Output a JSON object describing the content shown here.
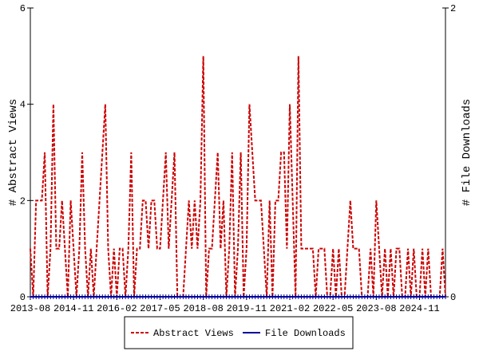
{
  "chart_data": {
    "type": "line",
    "x": [
      "2013-08",
      "2013-09",
      "2013-10",
      "2013-11",
      "2013-12",
      "2014-01",
      "2014-02",
      "2014-03",
      "2014-04",
      "2014-05",
      "2014-06",
      "2014-07",
      "2014-08",
      "2014-09",
      "2014-10",
      "2014-11",
      "2014-12",
      "2015-01",
      "2015-02",
      "2015-03",
      "2015-04",
      "2015-05",
      "2015-06",
      "2015-07",
      "2015-08",
      "2015-09",
      "2015-10",
      "2015-11",
      "2015-12",
      "2016-01",
      "2016-02",
      "2016-03",
      "2016-04",
      "2016-05",
      "2016-06",
      "2016-07",
      "2016-08",
      "2016-09",
      "2016-10",
      "2016-11",
      "2016-12",
      "2017-01",
      "2017-02",
      "2017-03",
      "2017-04",
      "2017-05",
      "2017-06",
      "2017-07",
      "2017-08",
      "2017-09",
      "2017-10",
      "2017-11",
      "2017-12",
      "2018-01",
      "2018-02",
      "2018-03",
      "2018-04",
      "2018-05",
      "2018-06",
      "2018-07",
      "2018-08",
      "2018-09",
      "2018-10",
      "2018-11",
      "2018-12",
      "2019-01",
      "2019-02",
      "2019-03",
      "2019-04",
      "2019-05",
      "2019-06",
      "2019-07",
      "2019-08",
      "2019-09",
      "2019-10",
      "2019-11",
      "2019-12",
      "2020-01",
      "2020-02",
      "2020-03",
      "2020-04",
      "2020-05",
      "2020-06",
      "2020-07",
      "2020-08",
      "2020-09",
      "2020-10",
      "2020-11",
      "2020-12",
      "2021-01",
      "2021-02",
      "2021-03",
      "2021-04",
      "2021-05",
      "2021-06",
      "2021-07",
      "2021-08",
      "2021-09",
      "2021-10",
      "2021-11",
      "2021-12",
      "2022-01",
      "2022-02",
      "2022-03",
      "2022-04",
      "2022-05",
      "2022-06",
      "2022-07",
      "2022-08",
      "2022-09",
      "2022-10",
      "2022-11",
      "2022-12",
      "2023-01",
      "2023-02",
      "2023-03",
      "2023-04",
      "2023-05",
      "2023-06",
      "2023-07",
      "2023-08",
      "2023-09",
      "2023-10",
      "2023-11",
      "2023-12",
      "2024-01",
      "2024-02",
      "2024-03",
      "2024-04",
      "2024-05",
      "2024-06",
      "2024-07",
      "2024-08",
      "2024-09",
      "2024-10",
      "2024-11",
      "2024-12",
      "2025-01",
      "2025-02",
      "2025-03",
      "2025-04",
      "2025-05",
      "2025-06",
      "2025-07",
      "2025-08"
    ],
    "xlim": [
      "2013-08",
      "2025-08"
    ],
    "xticks": [
      "2013-08",
      "2014-11",
      "2016-02",
      "2017-05",
      "2018-08",
      "2019-11",
      "2021-02",
      "2022-05",
      "2023-08",
      "2024-11"
    ],
    "ylim": [
      0,
      6
    ],
    "yticks": [
      0,
      2,
      4,
      6
    ],
    "y2lim": [
      0,
      2
    ],
    "y2ticks": [
      0,
      2
    ],
    "ylabel": "# Abstract Views",
    "y2label": "# File Downloads",
    "series": [
      {
        "name": "Abstract Views",
        "color": "#cc0000",
        "dashed": true,
        "values": [
          1,
          0,
          2,
          2,
          2,
          3,
          0,
          1,
          4,
          1,
          1,
          2,
          1,
          0,
          2,
          1,
          0,
          1,
          3,
          1,
          0,
          1,
          0,
          1,
          2,
          3,
          4,
          1,
          0,
          1,
          0,
          1,
          1,
          0,
          1,
          3,
          0,
          1,
          1,
          2,
          2,
          1,
          2,
          2,
          1,
          1,
          2,
          3,
          1,
          2,
          3,
          0,
          0,
          0,
          1,
          2,
          1,
          2,
          1,
          2,
          5,
          0,
          1,
          1,
          2,
          3,
          1,
          2,
          0,
          1,
          3,
          0,
          1,
          3,
          0,
          1,
          4,
          3,
          2,
          2,
          2,
          1,
          0,
          2,
          0,
          2,
          2,
          3,
          3,
          1,
          4,
          2,
          0,
          5,
          1,
          1,
          1,
          1,
          1,
          0,
          1,
          1,
          1,
          0,
          0,
          1,
          0,
          1,
          0,
          0,
          1,
          2,
          1,
          1,
          1,
          0,
          0,
          0,
          1,
          0,
          2,
          1,
          0,
          1,
          0,
          1,
          0,
          1,
          1,
          0,
          0,
          1,
          0,
          1,
          0,
          0,
          1,
          0,
          1,
          0,
          0,
          0,
          0,
          1,
          0
        ]
      },
      {
        "name": "File Downloads",
        "color": "#000099",
        "axis": "y2",
        "dashed": false,
        "values": [
          0,
          0,
          0,
          0,
          0,
          0,
          0,
          0,
          0,
          0,
          0,
          0,
          0,
          0,
          0,
          0,
          0,
          0,
          0,
          0,
          0,
          0,
          0,
          0,
          0,
          0,
          0,
          0,
          0,
          0,
          0,
          0,
          0,
          0,
          0,
          0,
          0,
          0,
          0,
          0,
          0,
          0,
          0,
          0,
          0,
          0,
          0,
          0,
          0,
          0,
          0,
          0,
          0,
          0,
          0,
          0,
          0,
          0,
          0,
          0,
          0,
          0,
          0,
          0,
          0,
          0,
          0,
          0,
          0,
          0,
          0,
          0,
          0,
          0,
          0,
          0,
          0,
          0,
          0,
          0,
          0,
          0,
          0,
          0,
          0,
          0,
          0,
          0,
          0,
          0,
          0,
          0,
          0,
          0,
          0,
          0,
          0,
          0,
          0,
          0,
          0,
          0,
          0,
          0,
          0,
          0,
          0,
          0,
          0,
          0,
          0,
          0,
          0,
          0,
          0,
          0,
          0,
          0,
          0,
          0,
          0,
          0,
          0,
          0,
          0,
          0,
          0,
          0,
          0,
          0,
          0,
          0,
          0,
          0,
          0,
          0,
          0,
          0,
          0,
          0,
          0,
          0,
          0,
          0,
          0
        ]
      }
    ]
  }
}
